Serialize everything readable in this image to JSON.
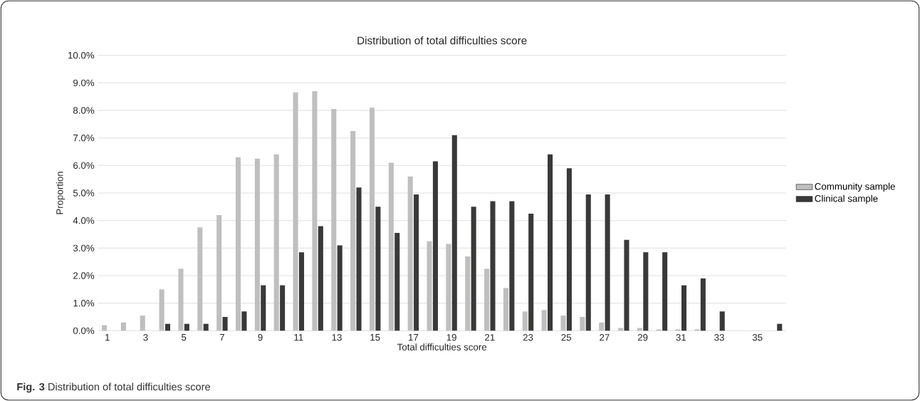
{
  "chart_data": {
    "type": "bar",
    "title": "Distribution of total difficulties score",
    "xlabel": "Total difficulties score",
    "ylabel": "Proportion",
    "annotations": [
      "**Fig. 3** Distribution of total difficulties score"
    ],
    "categories": [
      "1",
      null,
      "3",
      null,
      "5",
      null,
      "7",
      null,
      "9",
      null,
      "11",
      null,
      "13",
      null,
      "15",
      null,
      "17",
      null,
      "19",
      null,
      "21",
      null,
      "23",
      null,
      "25",
      null,
      "27",
      null,
      "29",
      null,
      "31",
      null,
      "33",
      null,
      "35",
      null
    ],
    "series": [
      {
        "name": "Community sample",
        "color": "#bfbfbf",
        "values": [
          0.2,
          0.3,
          0.55,
          1.5,
          2.25,
          3.75,
          4.2,
          6.3,
          6.25,
          6.4,
          8.65,
          8.7,
          8.05,
          7.25,
          8.1,
          6.1,
          5.6,
          3.25,
          3.15,
          2.7,
          2.25,
          1.55,
          0.7,
          0.75,
          0.55,
          0.5,
          0.3,
          0.1,
          0.1,
          0.05,
          0.05,
          0.05,
          0,
          0,
          0,
          0
        ]
      },
      {
        "name": "Clinical sample",
        "color": "#3a3937",
        "values": [
          0,
          0,
          0,
          0.25,
          0.25,
          0.25,
          0.5,
          0.7,
          1.65,
          1.65,
          2.85,
          3.8,
          3.1,
          5.2,
          4.5,
          3.55,
          4.95,
          6.15,
          7.1,
          4.5,
          4.7,
          4.7,
          4.25,
          6.4,
          5.9,
          4.95,
          4.95,
          3.3,
          2.85,
          2.85,
          1.65,
          1.9,
          0.7,
          0,
          0,
          0.25
        ]
      }
    ],
    "ylim": [
      0,
      10
    ],
    "yticks": [
      {
        "value": 0,
        "label": "0.0%"
      },
      {
        "value": 1,
        "label": "1.0%"
      },
      {
        "value": 2,
        "label": "2.0%"
      },
      {
        "value": 3,
        "label": "3.0%"
      },
      {
        "value": 4,
        "label": "4.0%"
      },
      {
        "value": 5,
        "label": "5.0%"
      },
      {
        "value": 6,
        "label": "6.0%"
      },
      {
        "value": 7,
        "label": "7.0%"
      },
      {
        "value": 8,
        "label": "8.0%"
      },
      {
        "value": 9,
        "label": "9.0%"
      },
      {
        "value": 10,
        "label": "10.0%"
      }
    ],
    "grid": "y",
    "legend": "right"
  }
}
